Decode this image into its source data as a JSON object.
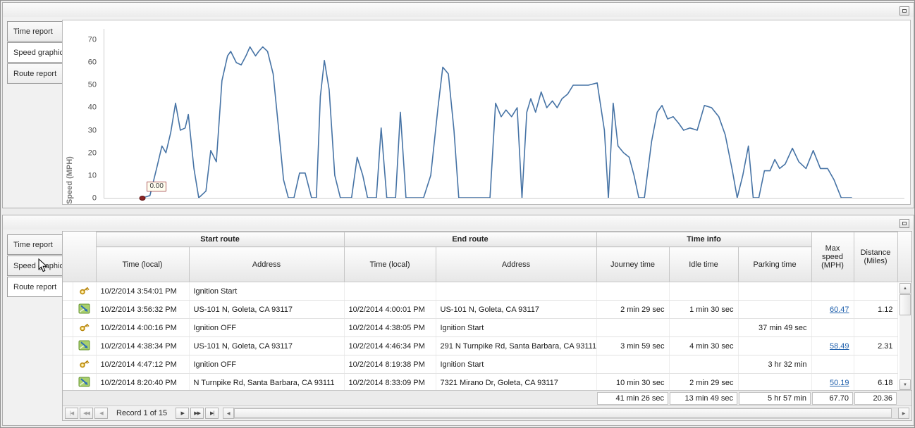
{
  "top_panel": {
    "tabs": [
      {
        "label": "Time report",
        "selected": false
      },
      {
        "label": "Speed graphic",
        "selected": true
      },
      {
        "label": "Route report",
        "selected": false
      }
    ],
    "chart_data": {
      "type": "line",
      "title": "",
      "xlabel": "",
      "ylabel": "Speed (MPH)",
      "yticks": [
        0,
        10,
        20,
        30,
        40,
        50,
        60,
        70
      ],
      "ylim": [
        0,
        75
      ],
      "xlim": [
        0,
        100
      ],
      "grid": false,
      "legend": "none",
      "line_color": "#4673a5",
      "annotation": {
        "label": "0.00",
        "x": 4.8,
        "y": 0
      },
      "points": [
        [
          4.8,
          0
        ],
        [
          5.7,
          1
        ],
        [
          6.6,
          14
        ],
        [
          7.2,
          23
        ],
        [
          7.7,
          20
        ],
        [
          8.3,
          29
        ],
        [
          8.9,
          42
        ],
        [
          9.5,
          30
        ],
        [
          10.1,
          31
        ],
        [
          10.5,
          37
        ],
        [
          11.2,
          13
        ],
        [
          11.8,
          0
        ],
        [
          12.7,
          3
        ],
        [
          13.3,
          21
        ],
        [
          14.0,
          16
        ],
        [
          14.7,
          52
        ],
        [
          15.4,
          63
        ],
        [
          15.8,
          65
        ],
        [
          16.5,
          60
        ],
        [
          17.1,
          59
        ],
        [
          17.7,
          63
        ],
        [
          18.2,
          67
        ],
        [
          18.9,
          63
        ],
        [
          19.3,
          65
        ],
        [
          19.8,
          67
        ],
        [
          20.4,
          65
        ],
        [
          21.1,
          55
        ],
        [
          21.8,
          30
        ],
        [
          22.4,
          8
        ],
        [
          23.0,
          0
        ],
        [
          23.7,
          0
        ],
        [
          24.4,
          11
        ],
        [
          25.1,
          11
        ],
        [
          25.9,
          0
        ],
        [
          26.5,
          0
        ],
        [
          27.0,
          45
        ],
        [
          27.5,
          61
        ],
        [
          28.1,
          48
        ],
        [
          28.8,
          10
        ],
        [
          29.5,
          0
        ],
        [
          30.9,
          0
        ],
        [
          31.6,
          18
        ],
        [
          32.3,
          10
        ],
        [
          32.9,
          0
        ],
        [
          34.0,
          0
        ],
        [
          34.6,
          31
        ],
        [
          35.3,
          0
        ],
        [
          36.4,
          0
        ],
        [
          37.0,
          38
        ],
        [
          37.7,
          0
        ],
        [
          39.9,
          0
        ],
        [
          40.8,
          10
        ],
        [
          41.7,
          40
        ],
        [
          42.3,
          58
        ],
        [
          43.0,
          55
        ],
        [
          43.7,
          30
        ],
        [
          44.3,
          0
        ],
        [
          48.2,
          0
        ],
        [
          48.9,
          42
        ],
        [
          49.6,
          36
        ],
        [
          50.2,
          39
        ],
        [
          50.9,
          36
        ],
        [
          51.6,
          40
        ],
        [
          52.2,
          0
        ],
        [
          52.8,
          38
        ],
        [
          53.3,
          44
        ],
        [
          53.9,
          38
        ],
        [
          54.6,
          47
        ],
        [
          55.3,
          40
        ],
        [
          56.0,
          43
        ],
        [
          56.6,
          40
        ],
        [
          57.2,
          44
        ],
        [
          57.9,
          46
        ],
        [
          58.6,
          50
        ],
        [
          59.5,
          50
        ],
        [
          60.5,
          50
        ],
        [
          61.6,
          51
        ],
        [
          62.5,
          30
        ],
        [
          63.0,
          0
        ],
        [
          63.6,
          42
        ],
        [
          64.2,
          23
        ],
        [
          64.9,
          20
        ],
        [
          65.6,
          18
        ],
        [
          66.2,
          10
        ],
        [
          66.8,
          0
        ],
        [
          67.5,
          0
        ],
        [
          68.4,
          25
        ],
        [
          69.1,
          38
        ],
        [
          69.7,
          41
        ],
        [
          70.4,
          35
        ],
        [
          71.1,
          36
        ],
        [
          71.8,
          33
        ],
        [
          72.4,
          30
        ],
        [
          73.2,
          31
        ],
        [
          74.1,
          30
        ],
        [
          75.0,
          41
        ],
        [
          75.9,
          40
        ],
        [
          76.8,
          36
        ],
        [
          77.6,
          28
        ],
        [
          78.5,
          12
        ],
        [
          79.1,
          0
        ],
        [
          79.8,
          10
        ],
        [
          80.5,
          23
        ],
        [
          81.1,
          0
        ],
        [
          81.8,
          0
        ],
        [
          82.5,
          12
        ],
        [
          83.2,
          12
        ],
        [
          83.8,
          17
        ],
        [
          84.4,
          13
        ],
        [
          85.1,
          15
        ],
        [
          86.0,
          22
        ],
        [
          86.8,
          16
        ],
        [
          87.7,
          13
        ],
        [
          88.6,
          21
        ],
        [
          89.5,
          13
        ],
        [
          90.4,
          13
        ],
        [
          91.2,
          8
        ],
        [
          92.1,
          0
        ],
        [
          93.4,
          0
        ]
      ]
    }
  },
  "bottom_panel": {
    "tabs": [
      {
        "label": "Time report",
        "selected": false
      },
      {
        "label": "Speed graphic",
        "selected": false
      },
      {
        "label": "Route report",
        "selected": true
      }
    ],
    "grid": {
      "link_color": "#2262ad",
      "column_groups": [
        {
          "label": "Start route"
        },
        {
          "label": "End route"
        },
        {
          "label": "Time info"
        }
      ],
      "columns": [
        {
          "label": "Time (local)"
        },
        {
          "label": "Address"
        },
        {
          "label": "Time (local)"
        },
        {
          "label": "Address"
        },
        {
          "label": "Journey time"
        },
        {
          "label": "Idle time"
        },
        {
          "label": "Parking time"
        },
        {
          "label": "Max speed (MPH)"
        },
        {
          "label": "Distance (Miles)"
        }
      ],
      "rows": [
        {
          "icon": "key",
          "max_speed_link": false,
          "cells": [
            "10/2/2014 3:54:01 PM",
            "Ignition Start",
            "",
            "",
            "",
            "",
            "",
            "",
            ""
          ]
        },
        {
          "icon": "route",
          "max_speed_link": true,
          "cells": [
            "10/2/2014 3:56:32 PM",
            "US-101 N, Goleta, CA 93117",
            "10/2/2014 4:00:01 PM",
            "US-101 N, Goleta, CA 93117",
            "2 min 29 sec",
            "1 min 30 sec",
            "",
            "60.47",
            "1.12"
          ]
        },
        {
          "icon": "key",
          "max_speed_link": false,
          "cells": [
            "10/2/2014 4:00:16 PM",
            "Ignition OFF",
            "10/2/2014 4:38:05 PM",
            "Ignition Start",
            "",
            "",
            "37 min 49 sec",
            "",
            ""
          ]
        },
        {
          "icon": "route",
          "max_speed_link": true,
          "cells": [
            "10/2/2014 4:38:34 PM",
            "US-101 N, Goleta, CA 93117",
            "10/2/2014 4:46:34 PM",
            "291 N Turnpike Rd, Santa Barbara, CA 93111",
            "3 min 59 sec",
            "4 min 30 sec",
            "",
            "58.49",
            "2.31"
          ]
        },
        {
          "icon": "key",
          "max_speed_link": false,
          "cells": [
            "10/2/2014 4:47:12 PM",
            "Ignition OFF",
            "10/2/2014 8:19:38 PM",
            "Ignition Start",
            "",
            "",
            "3 hr 32 min",
            "",
            ""
          ]
        },
        {
          "icon": "route",
          "max_speed_link": true,
          "cells": [
            "10/2/2014 8:20:40 PM",
            "N Turnpike Rd, Santa Barbara, CA 93111",
            "10/2/2014 8:33:09 PM",
            "7321 Mirano Dr, Goleta, CA 93117",
            "10 min 30 sec",
            "2 min 29 sec",
            "",
            "50.19",
            "6.18"
          ]
        }
      ],
      "summary": {
        "journey": "41 min 26 sec",
        "idle": "13 min 49 sec",
        "parking": "5 hr 57 min",
        "max_speed": "67.70",
        "distance": "20.36"
      }
    },
    "navigator": {
      "first": "|◀",
      "prior_page": "◀◀",
      "prior": "◀",
      "record_label": "Record 1 of 15",
      "next": "▶",
      "next_page": "▶▶",
      "last": "▶|"
    },
    "scrollbars": {
      "up": "▲",
      "down": "▼",
      "left": "◀",
      "right": "▶"
    }
  }
}
